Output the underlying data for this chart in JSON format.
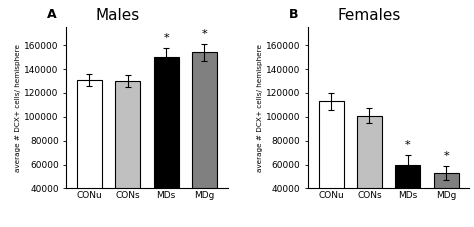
{
  "panel_A": {
    "title": "Males",
    "label": "A",
    "categories": [
      "CONu",
      "CONs",
      "MDs",
      "MDg"
    ],
    "values": [
      131000,
      130000,
      150000,
      154000
    ],
    "errors": [
      5000,
      5000,
      8000,
      7000
    ],
    "colors": [
      "#ffffff",
      "#c0c0c0",
      "#000000",
      "#808080"
    ],
    "sig": [
      false,
      false,
      true,
      true
    ],
    "ylim": [
      40000,
      175000
    ],
    "yticks": [
      40000,
      60000,
      80000,
      100000,
      120000,
      140000,
      160000
    ]
  },
  "panel_B": {
    "title": "Females",
    "label": "B",
    "categories": [
      "CONu",
      "CONs",
      "MDs",
      "MDg"
    ],
    "values": [
      113000,
      101000,
      60000,
      53000
    ],
    "errors": [
      7000,
      6000,
      8000,
      6000
    ],
    "colors": [
      "#ffffff",
      "#c0c0c0",
      "#000000",
      "#808080"
    ],
    "sig": [
      false,
      false,
      true,
      true
    ],
    "ylim": [
      40000,
      175000
    ],
    "yticks": [
      40000,
      60000,
      80000,
      100000,
      120000,
      140000,
      160000
    ]
  },
  "ylabel": "average # DCX+ cells/ hemisphere",
  "background_color": "#ffffff",
  "bar_width": 0.65,
  "edge_color": "#000000"
}
